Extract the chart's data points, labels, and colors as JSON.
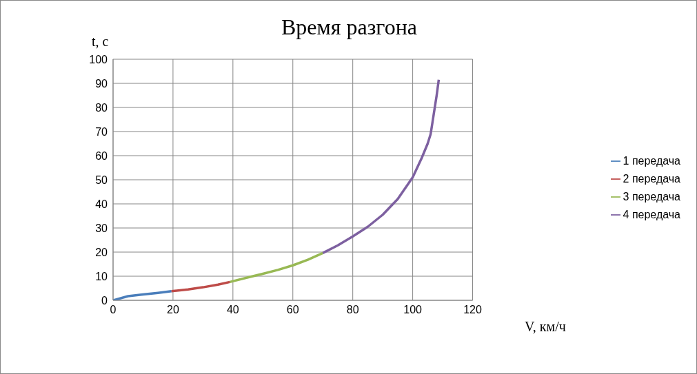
{
  "chart_data": {
    "type": "line",
    "title": "Время разгона",
    "xlabel": "V, км/ч",
    "ylabel": "t, с",
    "xlim": [
      0,
      120
    ],
    "xticks": [
      0,
      20,
      40,
      60,
      80,
      100,
      120
    ],
    "ylim": [
      0,
      100
    ],
    "yticks": [
      0,
      10,
      20,
      30,
      40,
      50,
      60,
      70,
      80,
      90,
      100
    ],
    "grid": true,
    "legend": "right",
    "marker": "none",
    "line_style": "solid",
    "series": [
      {
        "name": "1 передача",
        "color": "#4a7ebb",
        "x": [
          0,
          5,
          10,
          15,
          19.5
        ],
        "values": [
          0,
          1.7,
          2.4,
          3.1,
          3.8
        ]
      },
      {
        "name": "2 передача",
        "color": "#be4b48",
        "x": [
          19.5,
          25,
          30,
          35,
          39
        ],
        "values": [
          3.8,
          4.5,
          5.4,
          6.5,
          7.6
        ]
      },
      {
        "name": "3 передача",
        "color": "#98b954",
        "x": [
          39,
          45,
          50,
          55,
          60,
          65,
          70
        ],
        "values": [
          7.6,
          9.5,
          11,
          12.6,
          14.5,
          16.8,
          19.6
        ]
      },
      {
        "name": "4 передача",
        "color": "#7d60a0",
        "x": [
          70,
          75,
          80,
          85,
          90,
          95,
          100,
          103,
          105,
          106,
          107,
          108,
          108.7
        ],
        "values": [
          19.6,
          22.8,
          26.5,
          30.5,
          35.5,
          42,
          51,
          59,
          65,
          69,
          77,
          85,
          91.5
        ]
      }
    ]
  }
}
